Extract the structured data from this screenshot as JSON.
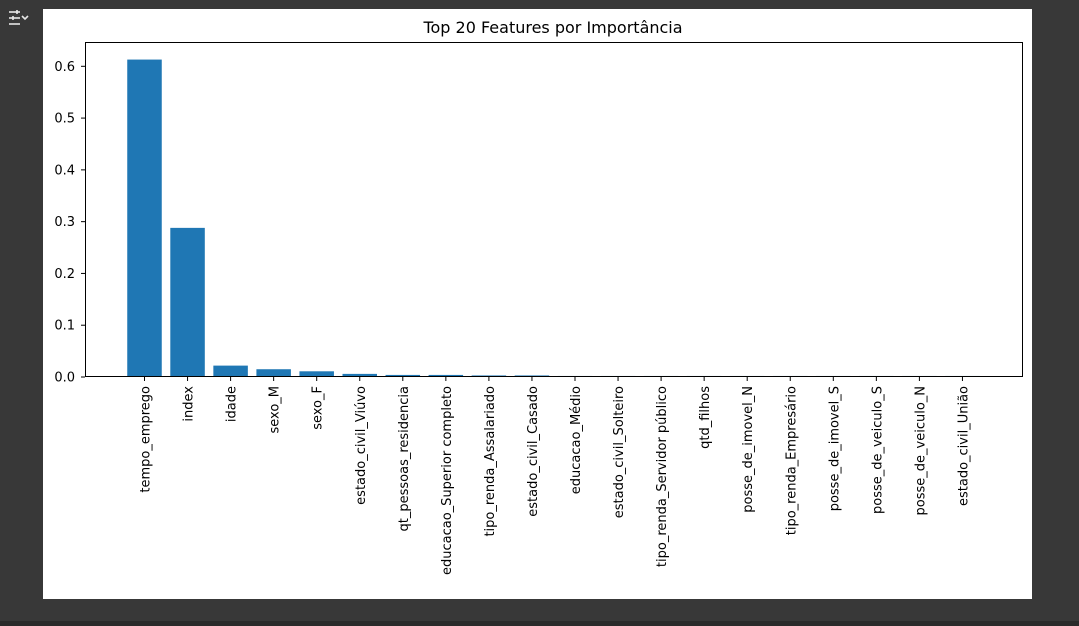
{
  "ui": {
    "output_icon": "output-settings-icon",
    "background_color": "#383838",
    "figure_background": "#ffffff"
  },
  "chart_data": {
    "type": "bar",
    "title": "Top 20 Features por Importância",
    "xlabel": "",
    "ylabel": "",
    "categories": [
      "tempo_emprego",
      "index",
      "idade",
      "sexo_M",
      "sexo_F",
      "estado_civil_Viúvo",
      "qt_pessoas_residencia",
      "educacao_Superior completo",
      "tipo_renda_Assalariado",
      "estado_civil_Casado",
      "educacao_Médio",
      "estado_civil_Solteiro",
      "tipo_renda_Servidor público",
      "qtd_filhos",
      "posse_de_imovel_N",
      "tipo_renda_Empresário",
      "posse_de_imovel_S",
      "posse_de_veiculo_S",
      "posse_de_veiculo_N",
      "estado_civil_União"
    ],
    "values": [
      0.613,
      0.288,
      0.022,
      0.015,
      0.011,
      0.006,
      0.004,
      0.004,
      0.003,
      0.003,
      0.002,
      0.002,
      0.002,
      0.002,
      0.002,
      0.002,
      0.002,
      0.002,
      0.002,
      0.002
    ],
    "yticks": [
      "0.0",
      "0.1",
      "0.2",
      "0.3",
      "0.4",
      "0.5",
      "0.6"
    ],
    "ylim": [
      0,
      0.645
    ],
    "bar_color": "#1f77b4",
    "grid": false,
    "legend": "none"
  }
}
